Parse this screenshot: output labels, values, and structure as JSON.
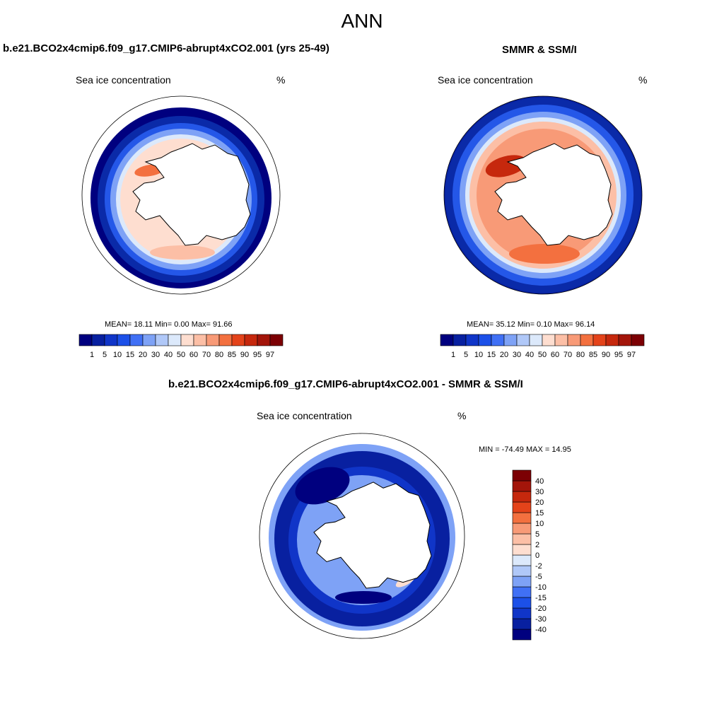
{
  "figure": {
    "title": "ANN",
    "panels": [
      {
        "id": "model",
        "title": "b.e21.BCO2x4cmip6.f09_g17.CMIP6-abrupt4xCO2.001 (yrs 25-49)",
        "left_label": "Sea ice concentration",
        "right_label": "%",
        "stats_text": "MEAN=  18.11  Min=   0.00  Max=  91.66"
      },
      {
        "id": "obs",
        "title": "SMMR & SSM/I",
        "left_label": "Sea ice concentration",
        "right_label": "%",
        "stats_text": "MEAN=  35.12  Min=   0.10  Max=  96.14"
      },
      {
        "id": "diff",
        "title": "b.e21.BCO2x4cmip6.f09_g17.CMIP6-abrupt4xCO2.001 - SMMR & SSM/I",
        "left_label": "Sea ice concentration",
        "right_label": "%",
        "stats_text": "MIN = -74.49 MAX =  14.95"
      }
    ]
  },
  "chart_data": [
    {
      "type": "heatmap",
      "projection": "south-polar-stereographic",
      "title": "b.e21.BCO2x4cmip6.f09_g17.CMIP6-abrupt4xCO2.001 (yrs 25-49)",
      "variable": "Sea ice concentration",
      "units": "%",
      "mean": 18.11,
      "min": 0.0,
      "max": 91.66,
      "colorbar": {
        "orientation": "horizontal",
        "levels": [
          "1",
          "5",
          "10",
          "15",
          "20",
          "30",
          "40",
          "50",
          "60",
          "70",
          "80",
          "85",
          "90",
          "95",
          "97"
        ],
        "colors": [
          "#00007f",
          "#0820a0",
          "#1035c8",
          "#1c50e8",
          "#4070f5",
          "#7ea2f6",
          "#b0c8f8",
          "#dce9fb",
          "#feded0",
          "#fcbfa6",
          "#f89a77",
          "#f3703f",
          "#e4431a",
          "#c6280d",
          "#a3150a",
          "#7c0004"
        ]
      }
    },
    {
      "type": "heatmap",
      "projection": "south-polar-stereographic",
      "title": "SMMR & SSM/I",
      "variable": "Sea ice concentration",
      "units": "%",
      "mean": 35.12,
      "min": 0.1,
      "max": 96.14,
      "colorbar": {
        "orientation": "horizontal",
        "levels": [
          "1",
          "5",
          "10",
          "15",
          "20",
          "30",
          "40",
          "50",
          "60",
          "70",
          "80",
          "85",
          "90",
          "95",
          "97"
        ],
        "colors": [
          "#00007f",
          "#0820a0",
          "#1035c8",
          "#1c50e8",
          "#4070f5",
          "#7ea2f6",
          "#b0c8f8",
          "#dce9fb",
          "#feded0",
          "#fcbfa6",
          "#f89a77",
          "#f3703f",
          "#e4431a",
          "#c6280d",
          "#a3150a",
          "#7c0004"
        ]
      }
    },
    {
      "type": "heatmap",
      "projection": "south-polar-stereographic",
      "title": "b.e21.BCO2x4cmip6.f09_g17.CMIP6-abrupt4xCO2.001 - SMMR & SSM/I",
      "variable": "Sea ice concentration",
      "units": "%",
      "min": -74.49,
      "max": 14.95,
      "colorbar": {
        "orientation": "vertical",
        "levels": [
          "-40",
          "-30",
          "-20",
          "-15",
          "-10",
          "-5",
          "-2",
          "0",
          "2",
          "5",
          "10",
          "15",
          "20",
          "30",
          "40"
        ],
        "colors": [
          "#00007f",
          "#0820a0",
          "#1035c8",
          "#1c50e8",
          "#4070f5",
          "#7ea2f6",
          "#b0c8f8",
          "#dce9fb",
          "#feded0",
          "#fcbfa6",
          "#f89a77",
          "#f3703f",
          "#e4431a",
          "#c6280d",
          "#a3150a",
          "#7c0004"
        ]
      }
    }
  ]
}
